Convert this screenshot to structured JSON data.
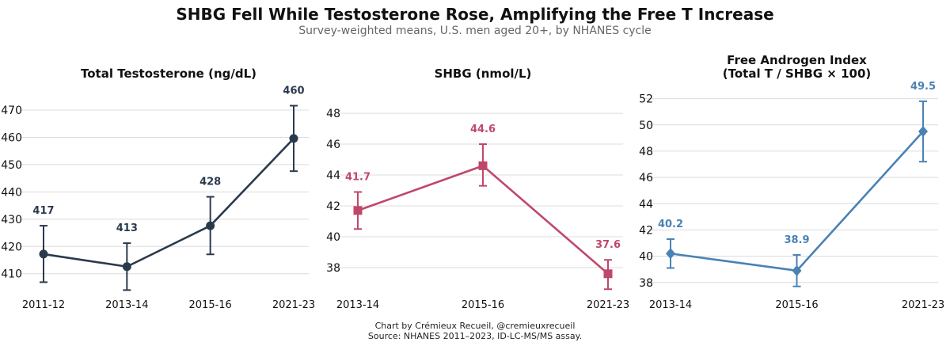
{
  "title": "SHBG Fell While Testosterone Rose, Amplifying the Free T Increase",
  "subtitle": "Survey-weighted means, U.S. men aged 20+, by NHANES cycle",
  "footer": {
    "credit": "Chart by Crémieux Recueil, @cremieuxrecueil",
    "source": "Source: NHANES 2011–2023, ID-LC-MS/MS assay."
  },
  "chart_data": [
    {
      "type": "line",
      "title": [
        "Total Testosterone (ng/dL)"
      ],
      "color": "#2a3a4d",
      "marker": "circle",
      "categories": [
        "2011-12",
        "2013-14",
        "2015-16",
        "2021-23"
      ],
      "values": [
        417.2,
        412.6,
        427.6,
        459.6
      ],
      "error_low": [
        406.9,
        404.0,
        417.1,
        447.6
      ],
      "error_high": [
        427.6,
        421.2,
        438.2,
        471.6
      ],
      "value_labels": [
        "417",
        "413",
        "428",
        "460"
      ],
      "ylim": [
        401.5,
        479
      ],
      "yticks": [
        410,
        420,
        430,
        440,
        450,
        460,
        470
      ],
      "xlabel": "",
      "ylabel": ""
    },
    {
      "type": "line",
      "title": [
        "SHBG (nmol/L)"
      ],
      "color": "#c0476a",
      "marker": "square",
      "categories": [
        "2013-14",
        "2015-16",
        "2021-23"
      ],
      "values": [
        41.7,
        44.6,
        37.6
      ],
      "error_low": [
        40.5,
        43.3,
        36.6
      ],
      "error_high": [
        42.9,
        46.0,
        38.5
      ],
      "value_labels": [
        "41.7",
        "44.6",
        "37.6"
      ],
      "ylim": [
        36.1,
        49.8
      ],
      "yticks": [
        38,
        40,
        42,
        44,
        46,
        48
      ],
      "xlabel": "",
      "ylabel": ""
    },
    {
      "type": "line",
      "title": [
        "Free Androgen Index",
        "(Total T / SHBG × 100)"
      ],
      "color": "#4a82b4",
      "marker": "diamond",
      "categories": [
        "2013-14",
        "2015-16",
        "2021-23"
      ],
      "values": [
        40.2,
        38.9,
        49.5
      ],
      "error_low": [
        39.1,
        37.7,
        47.2
      ],
      "error_high": [
        41.3,
        40.1,
        51.8
      ],
      "value_labels": [
        "40.2",
        "38.9",
        "49.5"
      ],
      "ylim": [
        36.9,
        53.0
      ],
      "yticks": [
        38,
        40,
        42,
        44,
        46,
        48,
        50,
        52
      ],
      "xlabel": "",
      "ylabel": ""
    }
  ]
}
